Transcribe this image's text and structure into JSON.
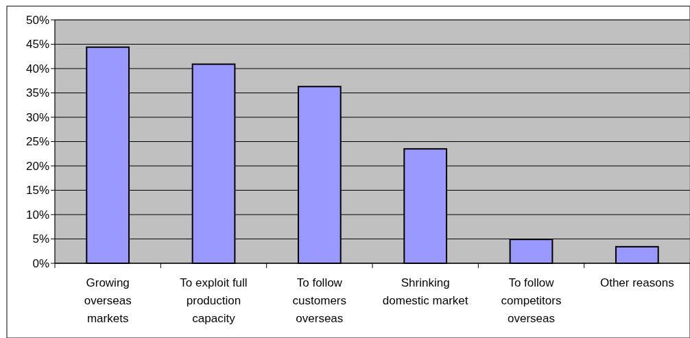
{
  "chart_data": {
    "type": "bar",
    "categories": [
      "Growing overseas markets",
      "To exploit full production capacity",
      "To follow customers overseas",
      "Shrinking domestic market",
      "To follow competitors overseas",
      "Other reasons"
    ],
    "values": [
      44.4,
      40.9,
      36.3,
      23.5,
      4.9,
      3.4
    ],
    "color": "#9999ff",
    "ylim": [
      0,
      50
    ],
    "yticks": [
      {
        "value": 0,
        "label": "0%"
      },
      {
        "value": 5,
        "label": "5%"
      },
      {
        "value": 10,
        "label": "10%"
      },
      {
        "value": 15,
        "label": "15%"
      },
      {
        "value": 20,
        "label": "20%"
      },
      {
        "value": 25,
        "label": "25%"
      },
      {
        "value": 30,
        "label": "30%"
      },
      {
        "value": 35,
        "label": "35%"
      },
      {
        "value": 40,
        "label": "40%"
      },
      {
        "value": 45,
        "label": "45%"
      },
      {
        "value": 50,
        "label": "50%"
      }
    ],
    "grid": "y"
  }
}
